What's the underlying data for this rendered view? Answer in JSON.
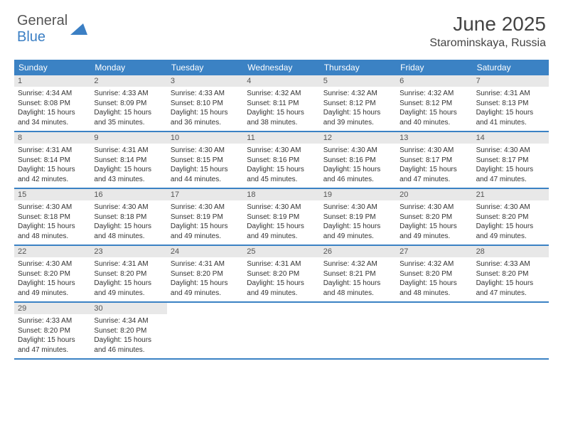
{
  "logo": {
    "general": "General",
    "blue": "Blue"
  },
  "title": "June 2025",
  "location": "Starominskaya, Russia",
  "colors": {
    "header_bg": "#3b82c4",
    "header_text": "#ffffff",
    "daynum_bg": "#e8e8e8",
    "border": "#3b82c4",
    "logo_blue": "#3b7fc4"
  },
  "day_labels": [
    "Sunday",
    "Monday",
    "Tuesday",
    "Wednesday",
    "Thursday",
    "Friday",
    "Saturday"
  ],
  "days": [
    {
      "n": "1",
      "sunrise": "Sunrise: 4:34 AM",
      "sunset": "Sunset: 8:08 PM",
      "day1": "Daylight: 15 hours",
      "day2": "and 34 minutes."
    },
    {
      "n": "2",
      "sunrise": "Sunrise: 4:33 AM",
      "sunset": "Sunset: 8:09 PM",
      "day1": "Daylight: 15 hours",
      "day2": "and 35 minutes."
    },
    {
      "n": "3",
      "sunrise": "Sunrise: 4:33 AM",
      "sunset": "Sunset: 8:10 PM",
      "day1": "Daylight: 15 hours",
      "day2": "and 36 minutes."
    },
    {
      "n": "4",
      "sunrise": "Sunrise: 4:32 AM",
      "sunset": "Sunset: 8:11 PM",
      "day1": "Daylight: 15 hours",
      "day2": "and 38 minutes."
    },
    {
      "n": "5",
      "sunrise": "Sunrise: 4:32 AM",
      "sunset": "Sunset: 8:12 PM",
      "day1": "Daylight: 15 hours",
      "day2": "and 39 minutes."
    },
    {
      "n": "6",
      "sunrise": "Sunrise: 4:32 AM",
      "sunset": "Sunset: 8:12 PM",
      "day1": "Daylight: 15 hours",
      "day2": "and 40 minutes."
    },
    {
      "n": "7",
      "sunrise": "Sunrise: 4:31 AM",
      "sunset": "Sunset: 8:13 PM",
      "day1": "Daylight: 15 hours",
      "day2": "and 41 minutes."
    },
    {
      "n": "8",
      "sunrise": "Sunrise: 4:31 AM",
      "sunset": "Sunset: 8:14 PM",
      "day1": "Daylight: 15 hours",
      "day2": "and 42 minutes."
    },
    {
      "n": "9",
      "sunrise": "Sunrise: 4:31 AM",
      "sunset": "Sunset: 8:14 PM",
      "day1": "Daylight: 15 hours",
      "day2": "and 43 minutes."
    },
    {
      "n": "10",
      "sunrise": "Sunrise: 4:30 AM",
      "sunset": "Sunset: 8:15 PM",
      "day1": "Daylight: 15 hours",
      "day2": "and 44 minutes."
    },
    {
      "n": "11",
      "sunrise": "Sunrise: 4:30 AM",
      "sunset": "Sunset: 8:16 PM",
      "day1": "Daylight: 15 hours",
      "day2": "and 45 minutes."
    },
    {
      "n": "12",
      "sunrise": "Sunrise: 4:30 AM",
      "sunset": "Sunset: 8:16 PM",
      "day1": "Daylight: 15 hours",
      "day2": "and 46 minutes."
    },
    {
      "n": "13",
      "sunrise": "Sunrise: 4:30 AM",
      "sunset": "Sunset: 8:17 PM",
      "day1": "Daylight: 15 hours",
      "day2": "and 47 minutes."
    },
    {
      "n": "14",
      "sunrise": "Sunrise: 4:30 AM",
      "sunset": "Sunset: 8:17 PM",
      "day1": "Daylight: 15 hours",
      "day2": "and 47 minutes."
    },
    {
      "n": "15",
      "sunrise": "Sunrise: 4:30 AM",
      "sunset": "Sunset: 8:18 PM",
      "day1": "Daylight: 15 hours",
      "day2": "and 48 minutes."
    },
    {
      "n": "16",
      "sunrise": "Sunrise: 4:30 AM",
      "sunset": "Sunset: 8:18 PM",
      "day1": "Daylight: 15 hours",
      "day2": "and 48 minutes."
    },
    {
      "n": "17",
      "sunrise": "Sunrise: 4:30 AM",
      "sunset": "Sunset: 8:19 PM",
      "day1": "Daylight: 15 hours",
      "day2": "and 49 minutes."
    },
    {
      "n": "18",
      "sunrise": "Sunrise: 4:30 AM",
      "sunset": "Sunset: 8:19 PM",
      "day1": "Daylight: 15 hours",
      "day2": "and 49 minutes."
    },
    {
      "n": "19",
      "sunrise": "Sunrise: 4:30 AM",
      "sunset": "Sunset: 8:19 PM",
      "day1": "Daylight: 15 hours",
      "day2": "and 49 minutes."
    },
    {
      "n": "20",
      "sunrise": "Sunrise: 4:30 AM",
      "sunset": "Sunset: 8:20 PM",
      "day1": "Daylight: 15 hours",
      "day2": "and 49 minutes."
    },
    {
      "n": "21",
      "sunrise": "Sunrise: 4:30 AM",
      "sunset": "Sunset: 8:20 PM",
      "day1": "Daylight: 15 hours",
      "day2": "and 49 minutes."
    },
    {
      "n": "22",
      "sunrise": "Sunrise: 4:30 AM",
      "sunset": "Sunset: 8:20 PM",
      "day1": "Daylight: 15 hours",
      "day2": "and 49 minutes."
    },
    {
      "n": "23",
      "sunrise": "Sunrise: 4:31 AM",
      "sunset": "Sunset: 8:20 PM",
      "day1": "Daylight: 15 hours",
      "day2": "and 49 minutes."
    },
    {
      "n": "24",
      "sunrise": "Sunrise: 4:31 AM",
      "sunset": "Sunset: 8:20 PM",
      "day1": "Daylight: 15 hours",
      "day2": "and 49 minutes."
    },
    {
      "n": "25",
      "sunrise": "Sunrise: 4:31 AM",
      "sunset": "Sunset: 8:20 PM",
      "day1": "Daylight: 15 hours",
      "day2": "and 49 minutes."
    },
    {
      "n": "26",
      "sunrise": "Sunrise: 4:32 AM",
      "sunset": "Sunset: 8:21 PM",
      "day1": "Daylight: 15 hours",
      "day2": "and 48 minutes."
    },
    {
      "n": "27",
      "sunrise": "Sunrise: 4:32 AM",
      "sunset": "Sunset: 8:20 PM",
      "day1": "Daylight: 15 hours",
      "day2": "and 48 minutes."
    },
    {
      "n": "28",
      "sunrise": "Sunrise: 4:33 AM",
      "sunset": "Sunset: 8:20 PM",
      "day1": "Daylight: 15 hours",
      "day2": "and 47 minutes."
    },
    {
      "n": "29",
      "sunrise": "Sunrise: 4:33 AM",
      "sunset": "Sunset: 8:20 PM",
      "day1": "Daylight: 15 hours",
      "day2": "and 47 minutes."
    },
    {
      "n": "30",
      "sunrise": "Sunrise: 4:34 AM",
      "sunset": "Sunset: 8:20 PM",
      "day1": "Daylight: 15 hours",
      "day2": "and 46 minutes."
    }
  ]
}
